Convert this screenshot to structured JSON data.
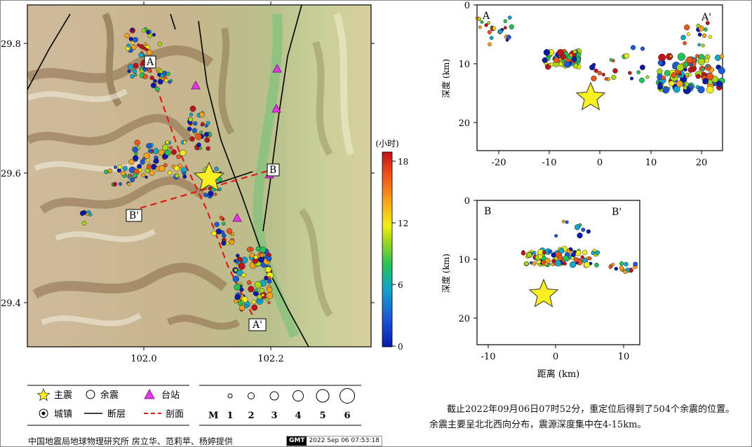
{
  "map": {
    "lat_ticks": [
      "29.8",
      "29.6",
      "29.4"
    ],
    "lon_ticks": [
      "102.0",
      "102.2"
    ],
    "profile_labels": {
      "A": "A",
      "A_prime": "A'",
      "B": "B",
      "B_prime": "B'"
    },
    "colorbar": {
      "unit": "(小时)",
      "ticks": [
        "18",
        "12",
        "6",
        "0"
      ]
    }
  },
  "legend": {
    "mainshock": "主震",
    "aftershock": "余震",
    "station": "台站",
    "town": "城镇",
    "fault": "断层",
    "profile": "剖面",
    "mag_label": "M",
    "magnitudes": [
      "1",
      "2",
      "3",
      "4",
      "5",
      "6"
    ]
  },
  "profile_AA": {
    "start": "A",
    "end": "A'",
    "ylabel": "深度 (km)",
    "xticks": [
      "-20",
      "-10",
      "0",
      "10",
      "20"
    ],
    "yticks": [
      "0",
      "10",
      "20"
    ]
  },
  "profile_BB": {
    "start": "B",
    "end": "B'",
    "ylabel": "深度 (km)",
    "xlabel": "距离 (km)",
    "xticks": [
      "-10",
      "0",
      "10"
    ],
    "yticks": [
      "0",
      "10",
      "20"
    ]
  },
  "notes": {
    "line1": "截止2022年09月06日07时52分，重定位后得到了504个余震的位置。",
    "line2": "余震主要呈北北西向分布，震源深度集中在4-15km。"
  },
  "credit": {
    "text": "中国地震局地球物理研究所  房立华、范莉苹、杨婷提供",
    "gmt_logo": "GMT",
    "timestamp": "2022 Sep 06 07:53:18"
  }
}
